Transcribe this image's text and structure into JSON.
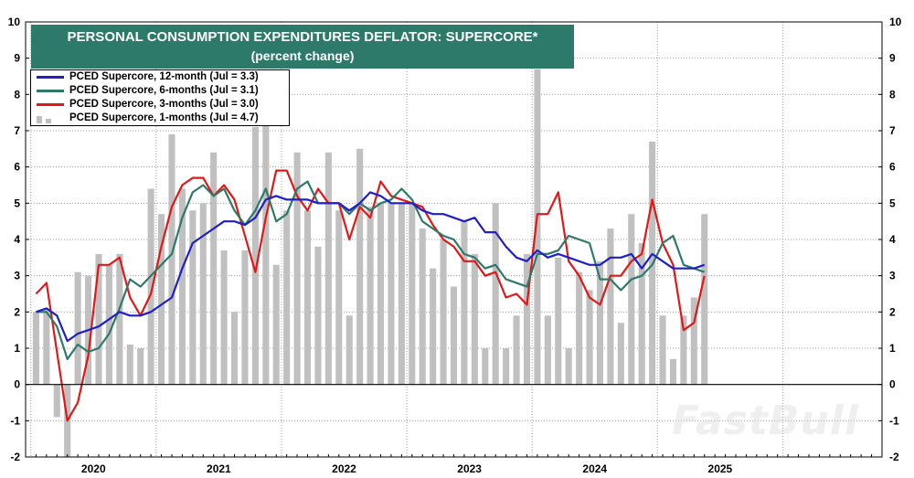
{
  "title": "PERSONAL CONSUMPTION EXPENDITURES DEFLATOR: SUPERCORE*",
  "subtitle": "(percent change)",
  "watermark": "FastBull",
  "colors": {
    "title_bg": "#2e7a6a",
    "bars": "#c0c0c0",
    "line_12m": "#1f1fc8",
    "line_6m": "#2e7a6a",
    "line_3m": "#e01818",
    "zero_line": "#000000",
    "grid": "#a0a0a0"
  },
  "legend": [
    {
      "label": "PCED Supercore, 12-month (Jul = 3.3)",
      "kind": "line",
      "color": "#1f1fc8"
    },
    {
      "label": "PCED Supercore, 6-months (Jul = 3.1)",
      "kind": "line",
      "color": "#2e7a6a"
    },
    {
      "label": "PCED Supercore, 3-months (Jul = 3.0)",
      "kind": "line",
      "color": "#e01818"
    },
    {
      "label": "PCED Supercore, 1-months (Jul = 4.7)",
      "kind": "bars",
      "color": "#c0c0c0"
    }
  ],
  "chart_data": {
    "type": "bar+line",
    "title": "PERSONAL CONSUMPTION EXPENDITURES DEFLATOR: SUPERCORE*",
    "subtitle": "(percent change)",
    "ylim": [
      -2,
      10
    ],
    "yticks": [
      -2,
      -1,
      0,
      1,
      2,
      3,
      4,
      5,
      6,
      7,
      8,
      9,
      10
    ],
    "xlim_months": [
      0,
      82
    ],
    "x_year_labels": [
      {
        "label": "2020",
        "month_index": 6.5
      },
      {
        "label": "2021",
        "month_index": 18.5
      },
      {
        "label": "2022",
        "month_index": 30.5
      },
      {
        "label": "2023",
        "month_index": 42.5
      },
      {
        "label": "2024",
        "month_index": 54.5
      },
      {
        "label": "2025",
        "month_index": 66.5
      }
    ],
    "year_boundaries": [
      0.5,
      12.5,
      24.5,
      36.5,
      48.5,
      60.5,
      72.5
    ],
    "grid": true,
    "start_month": "2019-07",
    "series": [
      {
        "name": "PCED Supercore, 1-months (Jul = 4.7)",
        "kind": "bar",
        "values": [
          2.0,
          2.1,
          -0.9,
          -2.0,
          3.1,
          3.0,
          3.6,
          3.3,
          3.6,
          1.1,
          1.0,
          5.4,
          4.7,
          6.9,
          5.4,
          4.8,
          5.0,
          6.4,
          3.7,
          2.0,
          3.7,
          7.1,
          7.2,
          3.3,
          4.8,
          6.4,
          4.8,
          3.8,
          6.4,
          4.8,
          1.9,
          6.5,
          4.9,
          5.0,
          5.0,
          5.0,
          5.0,
          4.3,
          3.2,
          4.0,
          2.7,
          4.5,
          3.6,
          1.0,
          5.0,
          1.0,
          1.9,
          3.6,
          8.7,
          1.9,
          3.5,
          1.0,
          3.1,
          2.6,
          3.4,
          4.3,
          1.7,
          4.7,
          3.9,
          6.7,
          1.9,
          0.7,
          1.9,
          2.4,
          4.7
        ]
      },
      {
        "name": "PCED Supercore, 12-month (Jul = 3.3)",
        "kind": "line",
        "values": [
          2.0,
          2.1,
          1.9,
          1.2,
          1.4,
          1.5,
          1.6,
          1.8,
          2.0,
          1.9,
          1.9,
          2.0,
          2.2,
          2.4,
          3.2,
          3.9,
          4.1,
          4.3,
          4.5,
          4.5,
          4.4,
          4.6,
          5.1,
          5.2,
          5.1,
          5.1,
          5.1,
          5.0,
          5.0,
          5.0,
          4.8,
          5.0,
          5.3,
          5.2,
          5.0,
          5.0,
          5.0,
          4.8,
          4.7,
          4.7,
          4.6,
          4.5,
          4.6,
          4.2,
          4.2,
          3.8,
          3.5,
          3.4,
          3.7,
          3.5,
          3.6,
          3.5,
          3.4,
          3.3,
          3.3,
          3.5,
          3.5,
          3.6,
          3.2,
          3.6,
          3.4,
          3.2,
          3.2,
          3.2,
          3.3
        ]
      },
      {
        "name": "PCED Supercore, 6-months (Jul = 3.1)",
        "kind": "line",
        "values": [
          2.0,
          2.0,
          1.6,
          0.7,
          1.1,
          0.9,
          1.0,
          1.4,
          2.1,
          2.9,
          2.7,
          3.0,
          3.3,
          3.6,
          4.6,
          5.3,
          5.5,
          5.2,
          5.4,
          4.8,
          4.4,
          4.8,
          5.4,
          4.5,
          4.7,
          5.4,
          5.6,
          5.0,
          5.0,
          5.0,
          4.7,
          5.0,
          4.8,
          5.0,
          5.1,
          5.4,
          5.1,
          4.5,
          4.3,
          4.1,
          4.0,
          3.6,
          3.5,
          3.2,
          3.3,
          2.9,
          2.8,
          2.7,
          3.6,
          3.6,
          3.7,
          4.1,
          4.0,
          3.9,
          2.9,
          2.9,
          2.6,
          2.9,
          3.0,
          3.3,
          3.9,
          4.1,
          3.3,
          3.2,
          3.1
        ]
      },
      {
        "name": "PCED Supercore, 3-months (Jul = 3.0)",
        "kind": "line",
        "values": [
          2.5,
          2.8,
          0.9,
          -1.0,
          -0.5,
          0.8,
          3.3,
          3.3,
          3.5,
          2.4,
          1.9,
          2.5,
          3.8,
          4.9,
          5.5,
          5.7,
          5.7,
          5.2,
          5.5,
          5.1,
          4.1,
          3.1,
          4.6,
          5.9,
          5.9,
          5.2,
          4.8,
          5.4,
          5.0,
          5.0,
          4.0,
          4.9,
          4.6,
          5.6,
          5.2,
          5.1,
          5.0,
          4.9,
          4.4,
          4.0,
          3.8,
          3.4,
          3.4,
          3.0,
          3.1,
          2.4,
          2.5,
          2.2,
          4.7,
          4.7,
          5.3,
          3.4,
          3.0,
          2.4,
          2.2,
          3.0,
          3.0,
          3.4,
          3.6,
          5.1,
          3.9,
          3.3,
          1.5,
          1.7,
          3.0
        ]
      }
    ]
  }
}
